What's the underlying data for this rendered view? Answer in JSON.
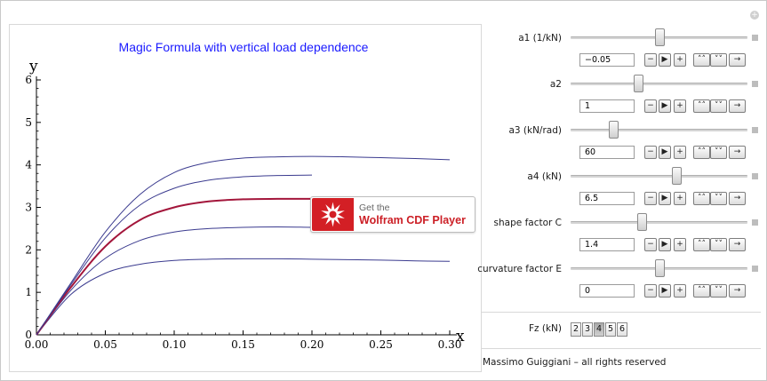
{
  "chart_data": {
    "type": "line",
    "title": "Magic Formula with vertical load dependence",
    "xlabel": "x",
    "ylabel": "y",
    "xlim": [
      0,
      0.3
    ],
    "ylim": [
      0,
      6
    ],
    "xticks": [
      "0.00",
      "0.05",
      "0.10",
      "0.15",
      "0.20",
      "0.25",
      "0.30"
    ],
    "yticks": [
      "0",
      "1",
      "2",
      "3",
      "4",
      "5",
      "6"
    ],
    "grid": false,
    "series": [
      {
        "color": "#3b3b8f",
        "x": [
          0,
          0.025,
          0.05,
          0.075,
          0.1,
          0.125,
          0.15,
          0.175,
          0.2,
          0.225,
          0.25,
          0.275,
          0.3
        ],
        "values": [
          0,
          0.95,
          1.45,
          1.66,
          1.75,
          1.78,
          1.79,
          1.79,
          1.78,
          1.77,
          1.76,
          1.74,
          1.73
        ]
      },
      {
        "color": "#3b3b8f",
        "x": [
          0,
          0.025,
          0.05,
          0.075,
          0.1,
          0.125,
          0.15,
          0.175,
          0.2,
          0.225,
          0.25,
          0.275,
          0.3
        ],
        "values": [
          0,
          1.05,
          1.8,
          2.22,
          2.42,
          2.5,
          2.53,
          2.54,
          2.53,
          2.52,
          2.5,
          2.48,
          2.46
        ]
      },
      {
        "color": "#a3163b",
        "x": [
          0,
          0.025,
          0.05,
          0.075,
          0.1,
          0.125,
          0.15,
          0.175,
          0.2
        ],
        "values": [
          0,
          1.12,
          2.08,
          2.7,
          3.0,
          3.14,
          3.19,
          3.2,
          3.2
        ]
      },
      {
        "color": "#3b3b8f",
        "x": [
          0,
          0.025,
          0.05,
          0.075,
          0.1,
          0.125,
          0.15,
          0.175,
          0.2
        ],
        "values": [
          0,
          1.18,
          2.28,
          3.05,
          3.45,
          3.64,
          3.72,
          3.75,
          3.76
        ]
      },
      {
        "color": "#3b3b8f",
        "x": [
          0,
          0.025,
          0.05,
          0.075,
          0.1,
          0.125,
          0.15,
          0.175,
          0.2,
          0.225,
          0.25,
          0.275,
          0.3
        ],
        "values": [
          0,
          1.22,
          2.42,
          3.3,
          3.82,
          4.06,
          4.16,
          4.19,
          4.2,
          4.19,
          4.17,
          4.15,
          4.12
        ]
      }
    ]
  },
  "controls": [
    {
      "label": "a1 (1/kN)",
      "value": "−0.05",
      "fraction": 0.5
    },
    {
      "label": "a2",
      "value": "1",
      "fraction": 0.38
    },
    {
      "label": "a3 (kN/rad)",
      "value": "60",
      "fraction": 0.24
    },
    {
      "label": "a4 (kN)",
      "value": "6.5",
      "fraction": 0.6
    },
    {
      "label": "shape factor C",
      "value": "1.4",
      "fraction": 0.4
    },
    {
      "label": "curvature factor E",
      "value": "0",
      "fraction": 0.5
    }
  ],
  "buttons": {
    "minus": "−",
    "play": "▶",
    "plus": "+",
    "faster": "˄˄",
    "slower": "˅˅",
    "direction": "→"
  },
  "fz": {
    "label": "Fz (kN)",
    "options": [
      "2",
      "3",
      "4",
      "5",
      "6"
    ],
    "selected": "4"
  },
  "credit": "Massimo Guiggiani – all rights reserved",
  "cdf_badge": {
    "line1": "Get the",
    "line2": "Wolfram CDF Player"
  },
  "icons": {
    "corner": "plus-circle-icon",
    "logo": "wolfram-spikey-icon"
  }
}
